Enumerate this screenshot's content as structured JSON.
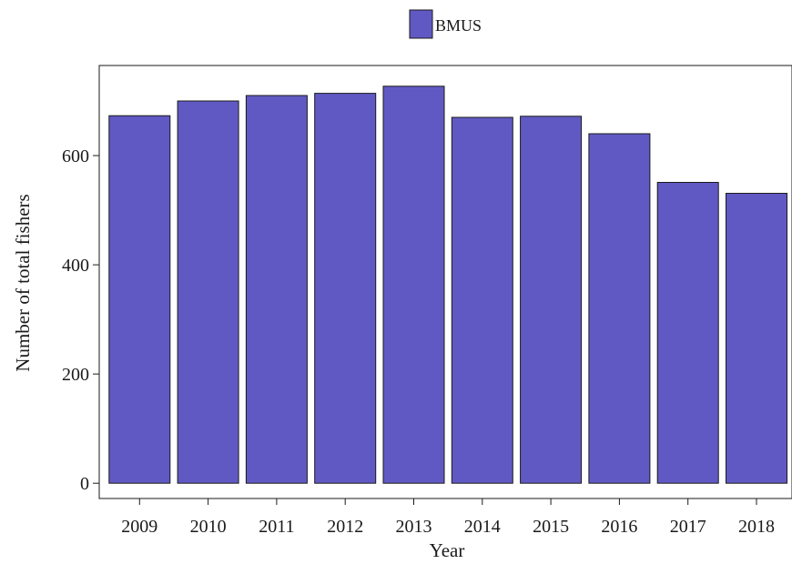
{
  "chart_data": {
    "type": "bar",
    "title": "",
    "xlabel": "Year",
    "ylabel": "Number of total fishers",
    "categories": [
      "2009",
      "2010",
      "2011",
      "2012",
      "2013",
      "2014",
      "2015",
      "2016",
      "2017",
      "2018"
    ],
    "series": [
      {
        "name": "BMUS",
        "values": [
          673,
          700,
          710,
          714,
          727,
          670,
          672,
          640,
          551,
          531
        ],
        "color": "#6159c3"
      }
    ],
    "ylim": [
      -28,
      765
    ],
    "yticks": [
      0,
      200,
      400,
      600
    ],
    "ytick_labels": [
      "0",
      "200",
      "400",
      "600"
    ],
    "grid": false,
    "legend": "top-center"
  }
}
